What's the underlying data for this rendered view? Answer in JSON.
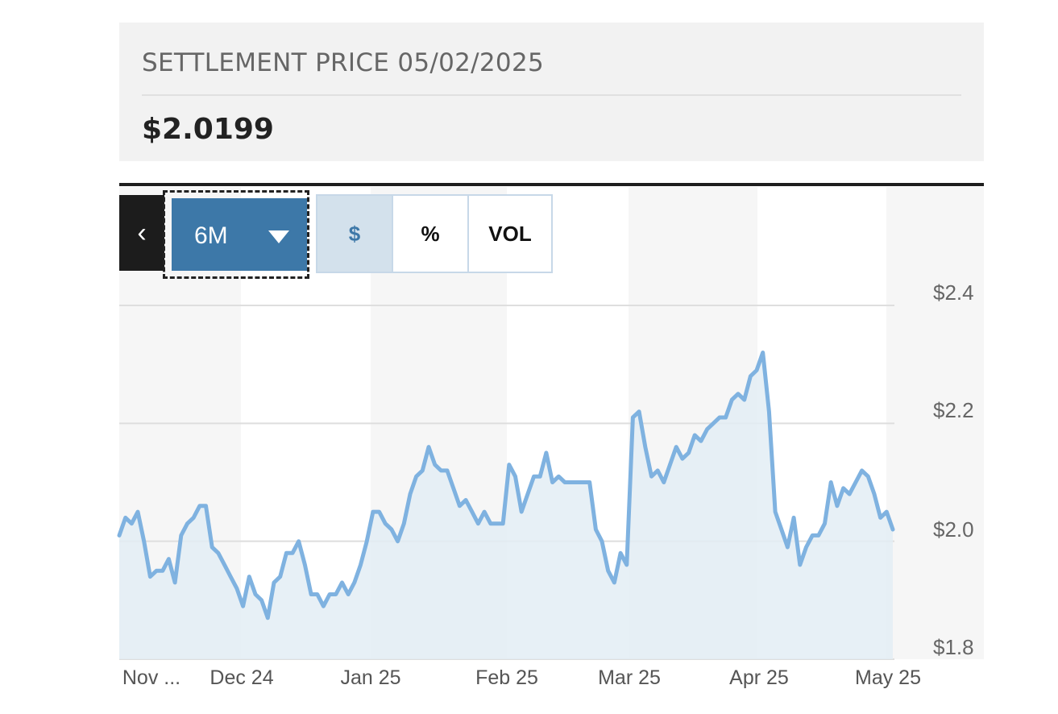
{
  "header": {
    "title": "SETTLEMENT PRICE 05/02/2025",
    "price": "$2.0199"
  },
  "controls": {
    "back_glyph": "‹",
    "range_label": "6M",
    "range_caret_icon": "caret-down-icon",
    "modes": [
      "$",
      "%",
      "VOL"
    ],
    "active_mode": "$"
  },
  "colors": {
    "line": "#7fb2e0",
    "area": "#e3edf5",
    "accent": "#3d78a8"
  },
  "chart_data": {
    "type": "area",
    "title": "",
    "xlabel": "",
    "ylabel": "",
    "x_tick_labels": [
      "Nov ...",
      "Dec 24",
      "Jan 25",
      "Feb 25",
      "Mar 25",
      "Apr 25",
      "May 25"
    ],
    "y_tick_labels": [
      "$2.4",
      "$2.2",
      "$2.0",
      "$1.8"
    ],
    "y_ticks": [
      2.4,
      2.2,
      2.0,
      1.8
    ],
    "ylim": [
      1.8,
      2.4
    ],
    "grid": true,
    "series": [
      {
        "values": [
          2.01,
          2.04,
          2.03,
          2.05,
          2.0,
          1.94,
          1.95,
          1.95,
          1.97,
          1.93,
          2.01,
          2.03,
          2.04,
          2.06,
          2.06,
          1.99,
          1.98,
          1.96,
          1.94,
          1.92,
          1.89,
          1.94,
          1.91,
          1.9,
          1.87,
          1.93,
          1.94,
          1.98,
          1.98,
          2.0,
          1.96,
          1.91,
          1.91,
          1.89,
          1.91,
          1.91,
          1.93,
          1.91,
          1.93,
          1.96,
          2.0,
          2.05,
          2.05,
          2.03,
          2.02,
          2.0,
          2.03,
          2.08,
          2.11,
          2.12,
          2.16,
          2.13,
          2.12,
          2.12,
          2.09,
          2.06,
          2.07,
          2.05,
          2.03,
          2.05,
          2.03,
          2.03,
          2.03,
          2.13,
          2.11,
          2.05,
          2.08,
          2.11,
          2.11,
          2.15,
          2.1,
          2.11,
          2.1,
          2.1,
          2.1,
          2.1,
          2.1,
          2.02,
          2.0,
          1.95,
          1.93,
          1.98,
          1.96,
          2.21,
          2.22,
          2.16,
          2.11,
          2.12,
          2.1,
          2.13,
          2.16,
          2.14,
          2.15,
          2.18,
          2.17,
          2.19,
          2.2,
          2.21,
          2.21,
          2.24,
          2.25,
          2.24,
          2.28,
          2.29,
          2.32,
          2.22,
          2.05,
          2.02,
          1.99,
          2.04,
          1.96,
          1.99,
          2.01,
          2.01,
          2.03,
          2.1,
          2.06,
          2.09,
          2.08,
          2.1,
          2.12,
          2.11,
          2.08,
          2.04,
          2.05,
          2.02
        ]
      }
    ]
  }
}
